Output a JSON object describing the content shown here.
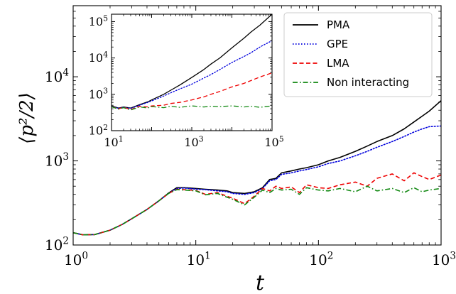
{
  "chart_data": [
    {
      "type": "line",
      "panel": "main",
      "title": "",
      "xlabel": "t",
      "ylabel": "⟨p²/2⟩",
      "xscale": "log",
      "yscale": "log",
      "xlim": [
        1,
        1000
      ],
      "ylim": [
        100,
        70000
      ],
      "grid": false,
      "legend_position": "top-right",
      "x_tick_labels": [
        {
          "value": 1,
          "base": "10",
          "exp": "0"
        },
        {
          "value": 10,
          "base": "10",
          "exp": "1"
        },
        {
          "value": 100,
          "base": "10",
          "exp": "2"
        },
        {
          "value": 1000,
          "base": "10",
          "exp": "3"
        }
      ],
      "y_tick_labels": [
        {
          "value": 100,
          "base": "10",
          "exp": "2"
        },
        {
          "value": 1000,
          "base": "10",
          "exp": "3"
        },
        {
          "value": 10000,
          "base": "10",
          "exp": "4"
        }
      ],
      "series": [
        {
          "name": "PMA",
          "color": "#000000",
          "style": "solid",
          "x": [
            1,
            1.2,
            1.5,
            2,
            2.5,
            3,
            4,
            5,
            6,
            7,
            8,
            9,
            10,
            12,
            15,
            18,
            20,
            25,
            30,
            35,
            40,
            45,
            50,
            60,
            70,
            80,
            100,
            120,
            150,
            200,
            250,
            300,
            400,
            500,
            600,
            700,
            800,
            1000
          ],
          "y": [
            140,
            132,
            133,
            150,
            175,
            205,
            265,
            335,
            415,
            480,
            480,
            475,
            470,
            460,
            450,
            440,
            420,
            410,
            430,
            480,
            600,
            620,
            720,
            760,
            800,
            830,
            900,
            1000,
            1100,
            1300,
            1500,
            1700,
            2000,
            2400,
            2900,
            3400,
            3900,
            5200
          ]
        },
        {
          "name": "GPE",
          "color": "#0000dd",
          "style": "dotted",
          "x": [
            1,
            1.2,
            1.5,
            2,
            2.5,
            3,
            4,
            5,
            6,
            7,
            8,
            9,
            10,
            12,
            15,
            18,
            20,
            25,
            30,
            35,
            40,
            45,
            50,
            60,
            70,
            80,
            100,
            120,
            150,
            200,
            250,
            300,
            400,
            500,
            600,
            700,
            800,
            1000
          ],
          "y": [
            140,
            132,
            133,
            150,
            175,
            205,
            265,
            335,
            410,
            470,
            475,
            468,
            462,
            455,
            440,
            430,
            410,
            400,
            420,
            470,
            580,
            600,
            690,
            720,
            760,
            790,
            850,
            930,
            1000,
            1150,
            1300,
            1450,
            1700,
            1950,
            2200,
            2400,
            2550,
            2600
          ]
        },
        {
          "name": "LMA",
          "color": "#ee0000",
          "style": "dashed",
          "x": [
            1,
            1.2,
            1.5,
            2,
            2.5,
            3,
            4,
            5,
            6,
            7,
            8,
            9,
            10,
            12,
            15,
            18,
            20,
            25,
            30,
            35,
            40,
            45,
            50,
            60,
            70,
            80,
            100,
            120,
            150,
            200,
            250,
            300,
            400,
            500,
            600,
            700,
            800,
            1000
          ],
          "y": [
            140,
            132,
            133,
            150,
            175,
            205,
            265,
            335,
            410,
            460,
            455,
            450,
            445,
            400,
            420,
            380,
            360,
            310,
            380,
            470,
            440,
            500,
            470,
            490,
            420,
            520,
            480,
            470,
            520,
            560,
            500,
            620,
            700,
            580,
            720,
            650,
            600,
            680
          ]
        },
        {
          "name": "Non interacting",
          "color": "#118811",
          "style": "dashdot",
          "x": [
            1,
            1.2,
            1.5,
            2,
            2.5,
            3,
            4,
            5,
            6,
            7,
            8,
            9,
            10,
            12,
            15,
            18,
            20,
            25,
            30,
            35,
            40,
            45,
            50,
            60,
            70,
            80,
            100,
            120,
            150,
            200,
            250,
            300,
            400,
            500,
            600,
            700,
            800,
            1000
          ],
          "y": [
            140,
            132,
            133,
            150,
            175,
            205,
            265,
            335,
            410,
            455,
            450,
            445,
            440,
            395,
            410,
            370,
            350,
            300,
            370,
            450,
            420,
            470,
            450,
            460,
            400,
            480,
            450,
            440,
            470,
            430,
            500,
            440,
            470,
            420,
            480,
            430,
            450,
            470
          ]
        }
      ]
    },
    {
      "type": "line",
      "panel": "inset",
      "title": "",
      "xlabel": "",
      "ylabel": "",
      "xscale": "log",
      "yscale": "log",
      "xlim": [
        10,
        100000
      ],
      "ylim": [
        100,
        160000
      ],
      "grid": false,
      "x_tick_labels": [
        {
          "value": 10,
          "base": "10",
          "exp": "1"
        },
        {
          "value": 1000,
          "base": "10",
          "exp": "3"
        },
        {
          "value": 100000,
          "base": "10",
          "exp": "5"
        }
      ],
      "y_tick_labels": [
        {
          "value": 100,
          "base": "10",
          "exp": "2"
        },
        {
          "value": 1000,
          "base": "10",
          "exp": "3"
        },
        {
          "value": 10000,
          "base": "10",
          "exp": "4"
        },
        {
          "value": 100000,
          "base": "10",
          "exp": "5"
        }
      ],
      "series": [
        {
          "name": "PMA",
          "color": "#000000",
          "style": "solid",
          "x": [
            10,
            15,
            20,
            30,
            50,
            80,
            100,
            200,
            300,
            500,
            1000,
            2000,
            3000,
            5000,
            10000,
            20000,
            30000,
            50000,
            100000
          ],
          "y": [
            480,
            420,
            450,
            420,
            520,
            620,
            700,
            1000,
            1300,
            1800,
            2900,
            4800,
            6800,
            10000,
            19000,
            35000,
            52000,
            80000,
            160000
          ]
        },
        {
          "name": "GPE",
          "color": "#0000dd",
          "style": "dotted",
          "x": [
            10,
            15,
            20,
            30,
            50,
            80,
            100,
            200,
            300,
            500,
            1000,
            2000,
            3000,
            5000,
            10000,
            20000,
            30000,
            50000,
            100000
          ],
          "y": [
            470,
            410,
            440,
            410,
            500,
            600,
            660,
            900,
            1100,
            1400,
            1900,
            2800,
            3500,
            4800,
            7500,
            11000,
            14000,
            20000,
            30000
          ]
        },
        {
          "name": "LMA",
          "color": "#ee0000",
          "style": "dashed",
          "x": [
            10,
            15,
            20,
            30,
            50,
            80,
            100,
            200,
            300,
            500,
            1000,
            2000,
            3000,
            5000,
            10000,
            20000,
            30000,
            50000,
            100000
          ],
          "y": [
            460,
            400,
            440,
            380,
            470,
            450,
            480,
            500,
            560,
            600,
            700,
            850,
            1000,
            1200,
            1600,
            2000,
            2400,
            3000,
            3900
          ]
        },
        {
          "name": "Non interacting",
          "color": "#118811",
          "style": "dashdot",
          "x": [
            10,
            15,
            20,
            30,
            50,
            80,
            100,
            200,
            300,
            500,
            1000,
            2000,
            3000,
            5000,
            10000,
            20000,
            30000,
            50000,
            100000
          ],
          "y": [
            455,
            390,
            430,
            370,
            450,
            420,
            460,
            430,
            470,
            440,
            480,
            450,
            470,
            460,
            480,
            450,
            470,
            440,
            480
          ]
        }
      ]
    }
  ]
}
